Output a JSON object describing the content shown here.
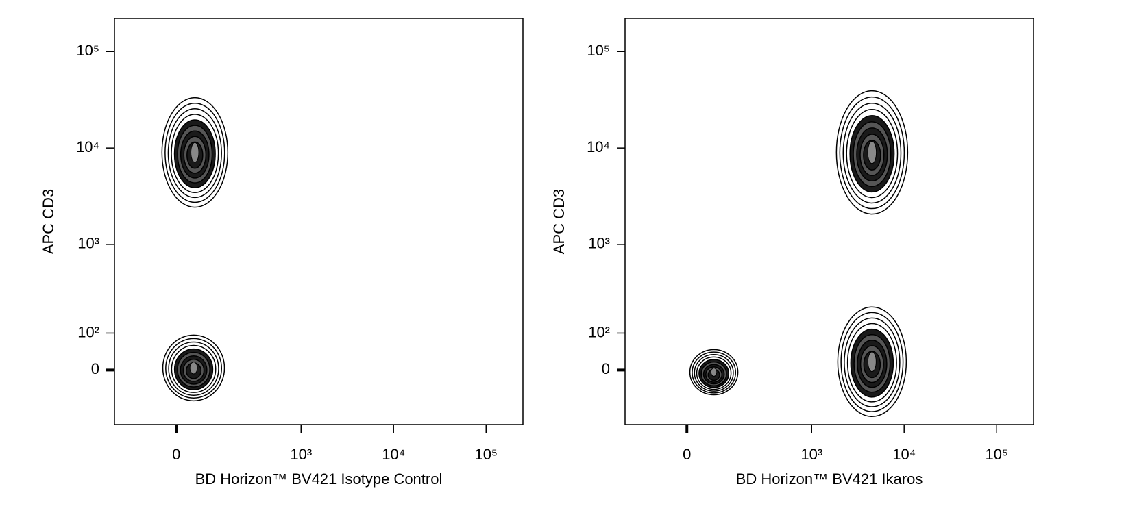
{
  "chart_data": [
    {
      "type": "contour",
      "x_label": "BD Horizon™ BV421 Isotype Control",
      "y_label": "APC CD3",
      "x": [
        43,
        40
      ],
      "y": [
        9000,
        5
      ],
      "xlim": [
        -200,
        250000
      ],
      "ylim": [
        -170,
        220000
      ],
      "log_scale": "biexponential",
      "xticks": [
        0,
        {
          "value": 1000,
          "label": "10³"
        },
        {
          "value": 10000,
          "label": "10⁴"
        },
        {
          "value": 100000,
          "label": "10⁵"
        }
      ],
      "yticks": [
        0,
        {
          "value": 100,
          "label": "10²"
        },
        {
          "value": 1000,
          "label": "10³"
        },
        {
          "value": 10000,
          "label": "10⁴"
        },
        {
          "value": 100000,
          "label": "10⁵"
        }
      ],
      "color": "#000000"
    },
    {
      "type": "contour",
      "x_label": "BD Horizon™ BV421 Ikaros",
      "y_label": "APC CD3",
      "x": [
        4500,
        4500,
        65
      ],
      "y": [
        9000,
        20,
        -5
      ],
      "xlim": [
        -200,
        250000
      ],
      "ylim": [
        -170,
        220000
      ],
      "log_scale": "biexponential",
      "xticks": [
        0,
        {
          "value": 1000,
          "label": "10³"
        },
        {
          "value": 10000,
          "label": "10⁴"
        },
        {
          "value": 100000,
          "label": "10⁵"
        }
      ],
      "yticks": [
        0,
        {
          "value": 100,
          "label": "10²"
        },
        {
          "value": 1000,
          "label": "10³"
        },
        {
          "value": 10000,
          "label": "10⁴"
        },
        {
          "value": 100000,
          "label": "10⁵"
        }
      ],
      "color": "#000000"
    }
  ]
}
